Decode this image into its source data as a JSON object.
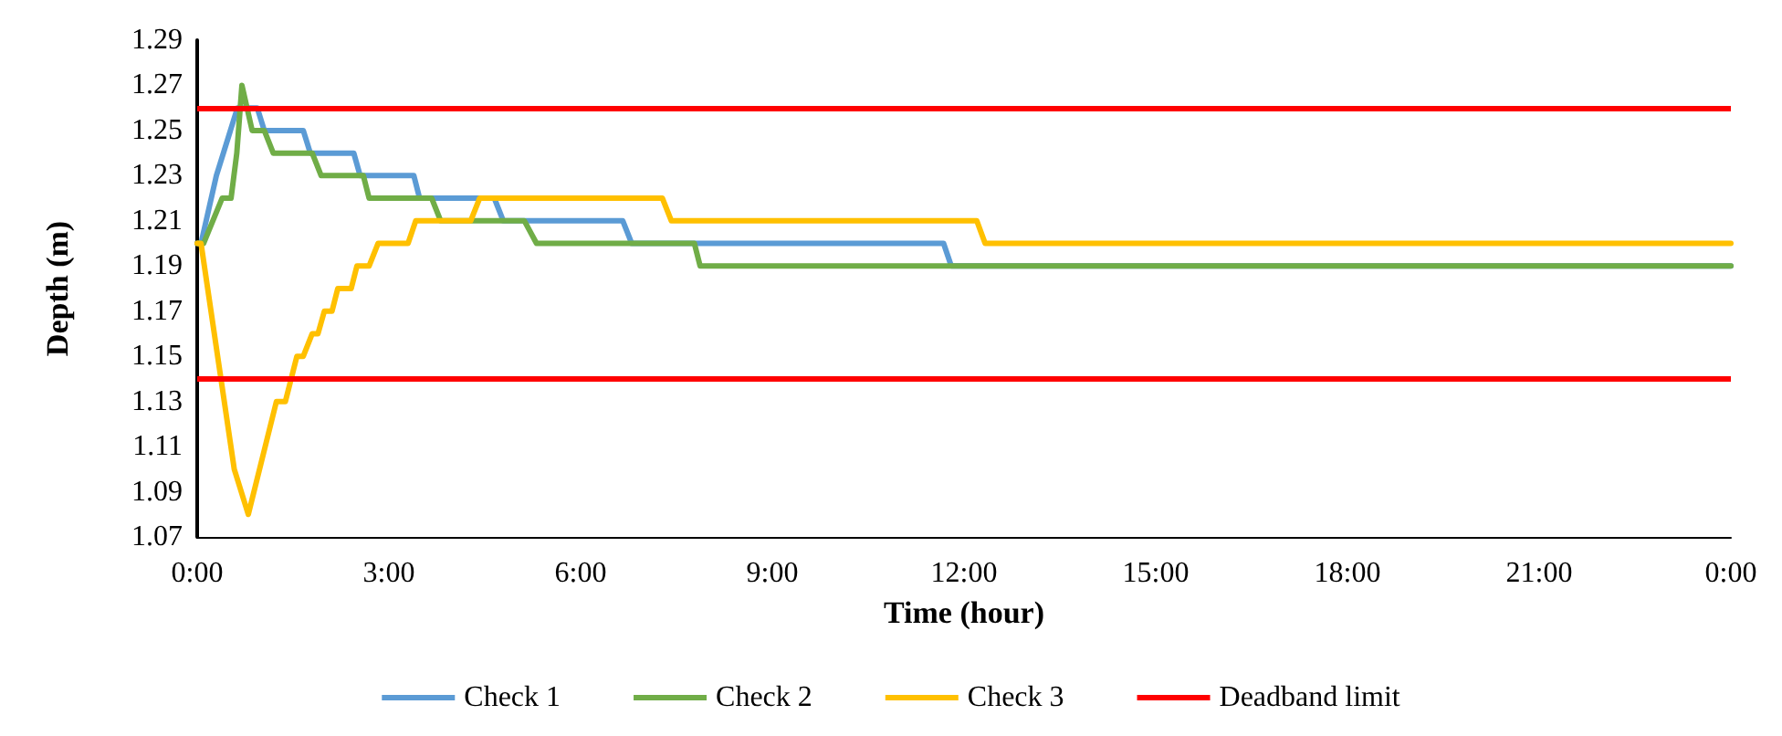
{
  "chart_data": {
    "type": "line",
    "xlabel": "Time (hour)",
    "ylabel": "Depth (m)",
    "xlim": [
      0,
      24
    ],
    "xticks": [
      {
        "value": 0,
        "label": "0:00"
      },
      {
        "value": 3,
        "label": "3:00"
      },
      {
        "value": 6,
        "label": "6:00"
      },
      {
        "value": 9,
        "label": "9:00"
      },
      {
        "value": 12,
        "label": "12:00"
      },
      {
        "value": 15,
        "label": "15:00"
      },
      {
        "value": 18,
        "label": "18:00"
      },
      {
        "value": 21,
        "label": "21:00"
      },
      {
        "value": 24,
        "label": "0:00"
      }
    ],
    "ylim": [
      1.07,
      1.29
    ],
    "yticks": [
      1.07,
      1.09,
      1.11,
      1.13,
      1.15,
      1.17,
      1.19,
      1.21,
      1.23,
      1.25,
      1.27,
      1.29
    ],
    "grid": false,
    "legend": "bottom",
    "marker": "none",
    "line_style": "solid",
    "series": [
      {
        "name": "Check 1",
        "color": "#5b9bd5",
        "x": [
          0,
          0.06,
          0.3,
          0.63,
          0.94,
          1.05,
          1.66,
          1.77,
          2.45,
          2.55,
          3.39,
          3.48,
          4.65,
          4.79,
          6.66,
          6.8,
          11.68,
          11.8,
          24
        ],
        "values": [
          1.2,
          1.2,
          1.23,
          1.26,
          1.26,
          1.25,
          1.25,
          1.24,
          1.24,
          1.23,
          1.23,
          1.22,
          1.22,
          1.21,
          1.21,
          1.2,
          1.2,
          1.19,
          1.19
        ]
      },
      {
        "name": "Check 2",
        "color": "#70ad47",
        "x": [
          0,
          0.1,
          0.39,
          0.53,
          0.62,
          0.7,
          0.86,
          1.05,
          1.19,
          1.8,
          1.94,
          2.6,
          2.69,
          3.67,
          3.81,
          5.12,
          5.31,
          7.78,
          7.87,
          24
        ],
        "values": [
          1.2,
          1.2,
          1.22,
          1.22,
          1.24,
          1.27,
          1.25,
          1.25,
          1.24,
          1.24,
          1.23,
          1.23,
          1.22,
          1.22,
          1.21,
          1.21,
          1.2,
          1.2,
          1.19,
          1.19
        ]
      },
      {
        "name": "Check 3",
        "color": "#ffc000",
        "x": [
          0,
          0.06,
          0.58,
          0.8,
          1.24,
          1.38,
          1.56,
          1.66,
          1.8,
          1.89,
          1.99,
          2.11,
          2.2,
          2.41,
          2.5,
          2.69,
          2.83,
          3.3,
          3.42,
          4.28,
          4.42,
          7.28,
          7.42,
          12.2,
          12.33,
          24
        ],
        "values": [
          1.2,
          1.2,
          1.1,
          1.08,
          1.13,
          1.13,
          1.15,
          1.15,
          1.16,
          1.16,
          1.17,
          1.17,
          1.18,
          1.18,
          1.19,
          1.19,
          1.2,
          1.2,
          1.21,
          1.21,
          1.22,
          1.22,
          1.21,
          1.21,
          1.2,
          1.2
        ]
      }
    ],
    "ref_lines": [
      {
        "axis": "y",
        "value": 1.26,
        "label": "Deadband limit",
        "color": "#ff0000"
      },
      {
        "axis": "y",
        "value": 1.14,
        "color": "#ff0000"
      }
    ]
  }
}
